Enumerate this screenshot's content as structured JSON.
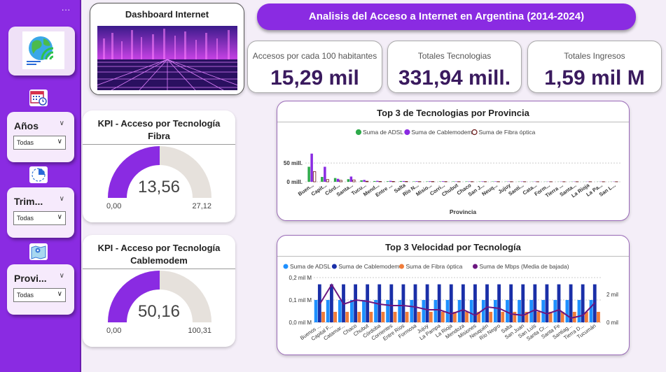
{
  "sidebar": {
    "more_label": "...",
    "slicers": [
      {
        "title": "Años",
        "value": "Todas"
      },
      {
        "title": "Trim...",
        "value": "Todas"
      },
      {
        "title": "Provi...",
        "value": "Todas"
      }
    ]
  },
  "header": {
    "dashboard_label": "Dashboard Internet",
    "main_title": "Analisis del Acceso a Internet en Argentina (2014-2024)"
  },
  "kpis": [
    {
      "label": "Accesos por cada 100 habitantes",
      "value": "15,29 mil"
    },
    {
      "label": "Totales Tecnologias",
      "value": "331,94 mill."
    },
    {
      "label": "Totales Ingresos",
      "value": "1,59 mil M"
    }
  ],
  "gauges": [
    {
      "title": "KPI - Acceso por Tecnología Fibra",
      "value": 13.56,
      "value_label": "13,56",
      "min_label": "0,00",
      "max_label": "27,12",
      "max": 27.12,
      "color": "#8a2be2",
      "track": "#e6e1dc"
    },
    {
      "title": "KPI - Acceso por Tecnología Cablemodem",
      "value": 50.16,
      "value_label": "50,16",
      "min_label": "0,00",
      "max_label": "100,31",
      "max": 100.31,
      "color": "#8a2be2",
      "track": "#e6e1dc"
    }
  ],
  "chart_data": [
    {
      "type": "bar",
      "title": "Top 3 de Tecnologias por Provincia",
      "xlabel": "Provincia",
      "ylabel": "",
      "yticks": [
        "0 mill.",
        "50 mill."
      ],
      "ylim": [
        0,
        80
      ],
      "legend_position": "top",
      "categories": [
        "Buen...",
        "Capit...",
        "Córd...",
        "Santa...",
        "Tucu...",
        "Mend...",
        "Entre ...",
        "Salta",
        "Río N...",
        "Misio...",
        "Corri...",
        "Chubut",
        "Chaco",
        "San J...",
        "Neuq...",
        "Jujuy",
        "Santi...",
        "Cata...",
        "Form...",
        "Tierra ...",
        "Santa...",
        "La Rioja",
        "La Pa...",
        "San L..."
      ],
      "series": [
        {
          "name": "Suma de ADSL",
          "color": "#2eaa4a",
          "values": [
            40,
            13,
            10,
            7,
            4,
            2,
            1.5,
            2,
            1,
            1,
            1,
            1,
            1,
            0.8,
            0.8,
            0.6,
            0.6,
            0.4,
            0.4,
            0.3,
            0.4,
            0.3,
            0.3,
            0.3
          ]
        },
        {
          "name": "Suma de Cablemodem",
          "color": "#8a2be2",
          "values": [
            75,
            40,
            8,
            14,
            5,
            2.5,
            2.5,
            2,
            1.5,
            1.5,
            1.5,
            1,
            1,
            1,
            1,
            0.8,
            0.8,
            0.6,
            0.5,
            0.5,
            0.6,
            0.5,
            0.5,
            0.5
          ]
        },
        {
          "name": "Suma de Fibra óptica",
          "color": "#ffffff",
          "stroke": "#6b1a1a",
          "values": [
            27,
            6,
            4,
            5,
            1.5,
            1,
            1,
            1,
            0.6,
            0.8,
            0.6,
            0.5,
            0.5,
            0.5,
            0.5,
            0.4,
            0.4,
            0.3,
            0.3,
            0.3,
            0.3,
            0.3,
            0.3,
            0.3
          ]
        }
      ]
    },
    {
      "type": "bar",
      "title": "Top 3 Velocidad por Tecnología",
      "xlabel": "",
      "ylabel": "",
      "yticks_left": [
        "0,0 mil M",
        "0,1 mil M",
        "0,2 mil M"
      ],
      "yticks_right": [
        "0 mil",
        "2 mil"
      ],
      "ylim": [
        0,
        0.2
      ],
      "ylim_right": [
        0,
        3.2
      ],
      "legend_position": "top",
      "categories": [
        "Buenos ...",
        "Capital F...",
        "Catamar...",
        "Chaco",
        "Chubut",
        "Córdoba",
        "Corrientes",
        "Entre Ríos",
        "Formosa",
        "Jujuy",
        "La Pampa",
        "La Rioja",
        "Mendoza",
        "Misiones",
        "Neuquén",
        "Río Negro",
        "Salta",
        "San Juan",
        "San Luis",
        "Santa Cr...",
        "Santa Fe",
        "Santiag...",
        "Tierra D...",
        "Tucumán"
      ],
      "series": [
        {
          "name": "Suma de ADSL",
          "color": "#1e90ff",
          "values": [
            0.1,
            0.1,
            0.1,
            0.1,
            0.1,
            0.1,
            0.1,
            0.1,
            0.1,
            0.1,
            0.1,
            0.1,
            0.1,
            0.1,
            0.1,
            0.1,
            0.1,
            0.1,
            0.1,
            0.1,
            0.1,
            0.1,
            0.1,
            0.1
          ]
        },
        {
          "name": "Suma de Cablemodem",
          "color": "#1a2fa8",
          "values": [
            0.17,
            0.17,
            0.17,
            0.17,
            0.17,
            0.17,
            0.17,
            0.17,
            0.17,
            0.17,
            0.17,
            0.17,
            0.17,
            0.17,
            0.17,
            0.17,
            0.17,
            0.17,
            0.17,
            0.17,
            0.17,
            0.17,
            0.17,
            0.17
          ]
        },
        {
          "name": "Suma de Fibra óptica",
          "color": "#f07c3a",
          "values": [
            0.047,
            0.047,
            0.047,
            0.047,
            0.047,
            0.047,
            0.047,
            0.047,
            0.047,
            0.047,
            0.047,
            0.047,
            0.047,
            0.047,
            0.047,
            0.047,
            0.047,
            0.047,
            0.047,
            0.047,
            0.047,
            0.047,
            0.047,
            0.047
          ]
        },
        {
          "name": "Suma de Mbps (Media de bajada)",
          "color": "#6b1680",
          "type": "line",
          "axis": "right",
          "values": [
            1.3,
            2.7,
            1.3,
            1.6,
            1.5,
            1.3,
            1.2,
            1.2,
            1.1,
            0.9,
            0.9,
            0.6,
            0.9,
            0.5,
            1.1,
            1.0,
            0.6,
            0.5,
            0.9,
            0.6,
            0.9,
            0.3,
            0.5,
            1.4
          ]
        }
      ]
    }
  ]
}
